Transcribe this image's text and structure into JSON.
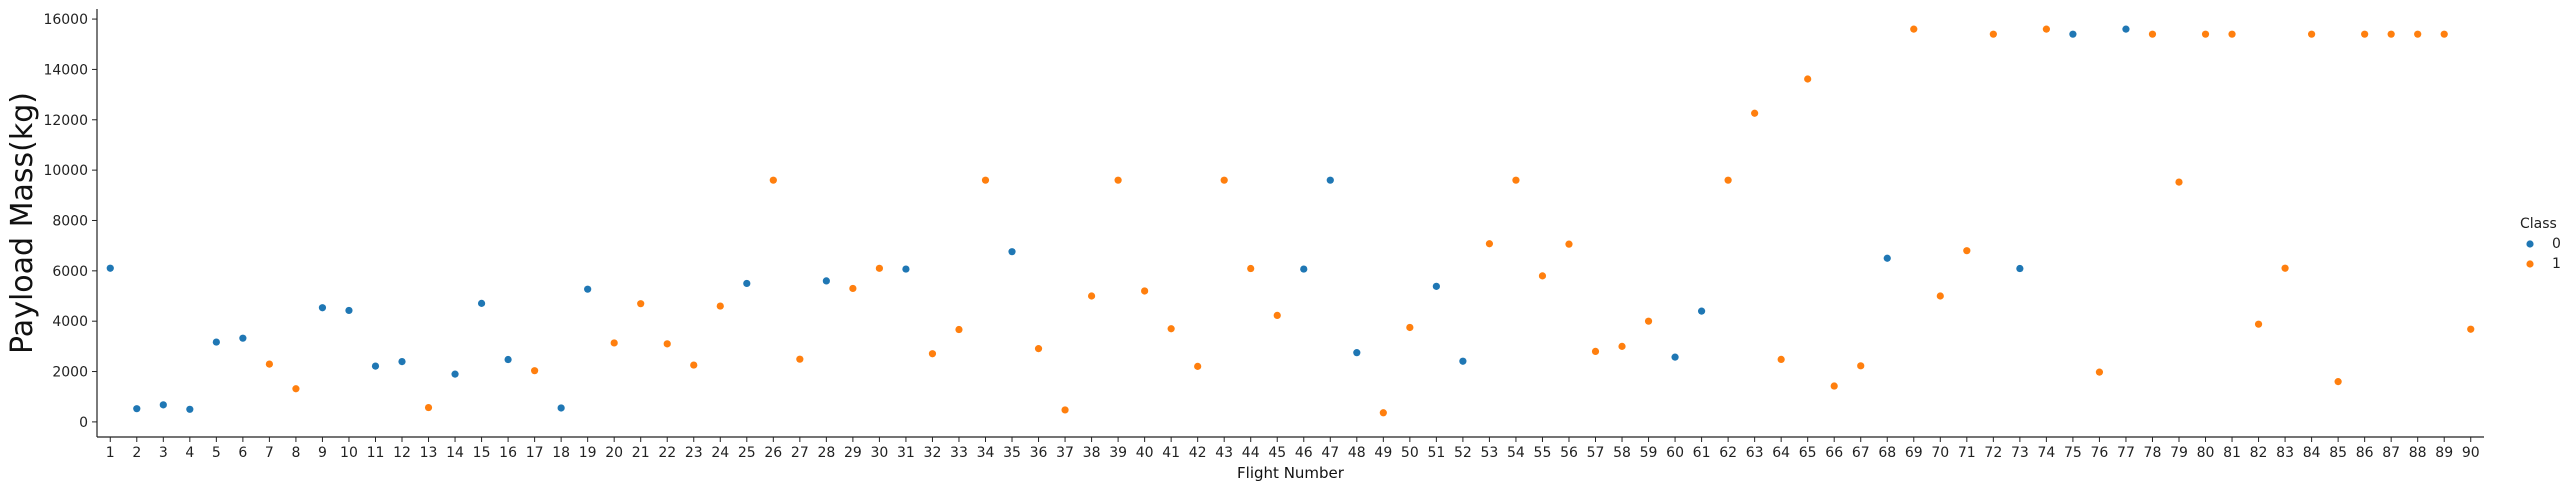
{
  "chart_data": {
    "type": "scatter",
    "title": "",
    "xlabel": "Flight Number",
    "ylabel": "Payload Mass(kg)",
    "ylim": [
      -600,
      16400
    ],
    "yticks": [
      0,
      2000,
      4000,
      6000,
      8000,
      10000,
      12000,
      14000,
      16000
    ],
    "categories": [
      1,
      2,
      3,
      4,
      5,
      6,
      7,
      8,
      9,
      10,
      11,
      12,
      13,
      14,
      15,
      16,
      17,
      18,
      19,
      20,
      21,
      22,
      23,
      24,
      25,
      26,
      27,
      28,
      29,
      30,
      31,
      32,
      33,
      34,
      35,
      36,
      37,
      38,
      39,
      40,
      41,
      42,
      43,
      44,
      45,
      46,
      47,
      48,
      49,
      50,
      51,
      52,
      53,
      54,
      55,
      56,
      57,
      58,
      59,
      60,
      61,
      62,
      63,
      64,
      65,
      66,
      67,
      68,
      69,
      70,
      71,
      72,
      73,
      74,
      75,
      76,
      77,
      78,
      79,
      80,
      81,
      82,
      83,
      84,
      85,
      86,
      87,
      88,
      89,
      90
    ],
    "grid": false,
    "legend": {
      "title": "Class",
      "position": "right",
      "entries": [
        {
          "label": "0",
          "color": "#1f77b4"
        },
        {
          "label": "1",
          "color": "#ff7f0e"
        }
      ]
    },
    "series": [
      {
        "name": "0",
        "color": "#1f77b4",
        "points": [
          [
            1,
            6104
          ],
          [
            2,
            525
          ],
          [
            3,
            677
          ],
          [
            4,
            500
          ],
          [
            5,
            3170
          ],
          [
            6,
            3325
          ],
          [
            9,
            4535
          ],
          [
            10,
            4428
          ],
          [
            11,
            2216
          ],
          [
            12,
            2395
          ],
          [
            14,
            1898
          ],
          [
            15,
            4707
          ],
          [
            16,
            2477
          ],
          [
            18,
            553
          ],
          [
            19,
            5271
          ],
          [
            25,
            5500
          ],
          [
            28,
            5600
          ],
          [
            31,
            6070
          ],
          [
            35,
            6761
          ],
          [
            46,
            6070
          ],
          [
            47,
            9600
          ],
          [
            48,
            2750
          ],
          [
            51,
            5384
          ],
          [
            52,
            2410
          ],
          [
            60,
            2573
          ],
          [
            61,
            4400
          ],
          [
            68,
            6500
          ],
          [
            73,
            6092
          ],
          [
            75,
            15400
          ],
          [
            77,
            15600
          ]
        ]
      },
      {
        "name": "1",
        "color": "#ff7f0e",
        "points": [
          [
            7,
            2296
          ],
          [
            8,
            1316
          ],
          [
            13,
            570
          ],
          [
            17,
            2034
          ],
          [
            20,
            3136
          ],
          [
            21,
            4696
          ],
          [
            22,
            3100
          ],
          [
            23,
            2257
          ],
          [
            24,
            4600
          ],
          [
            26,
            9600
          ],
          [
            27,
            2490
          ],
          [
            29,
            5300
          ],
          [
            30,
            6100
          ],
          [
            32,
            2708
          ],
          [
            33,
            3669
          ],
          [
            34,
            9600
          ],
          [
            36,
            2910
          ],
          [
            37,
            475
          ],
          [
            38,
            5000
          ],
          [
            39,
            9600
          ],
          [
            40,
            5200
          ],
          [
            41,
            3700
          ],
          [
            42,
            2205
          ],
          [
            43,
            9600
          ],
          [
            44,
            6092
          ],
          [
            45,
            4230
          ],
          [
            49,
            362
          ],
          [
            50,
            3750
          ],
          [
            53,
            7076
          ],
          [
            54,
            9600
          ],
          [
            55,
            5800
          ],
          [
            56,
            7060
          ],
          [
            57,
            2800
          ],
          [
            58,
            3000
          ],
          [
            59,
            4000
          ],
          [
            62,
            9600
          ],
          [
            63,
            12259
          ],
          [
            64,
            2482
          ],
          [
            65,
            13620
          ],
          [
            66,
            1425
          ],
          [
            67,
            2227
          ],
          [
            69,
            15600
          ],
          [
            70,
            5000
          ],
          [
            71,
            6800
          ],
          [
            72,
            15400
          ],
          [
            74,
            15600
          ],
          [
            76,
            1977
          ],
          [
            78,
            15400
          ],
          [
            79,
            9525
          ],
          [
            80,
            15400
          ],
          [
            81,
            15400
          ],
          [
            82,
            3880
          ],
          [
            83,
            6104
          ],
          [
            84,
            15400
          ],
          [
            85,
            1600
          ],
          [
            86,
            15400
          ],
          [
            87,
            15400
          ],
          [
            88,
            15400
          ],
          [
            89,
            15400
          ],
          [
            90,
            3681
          ]
        ]
      }
    ]
  }
}
